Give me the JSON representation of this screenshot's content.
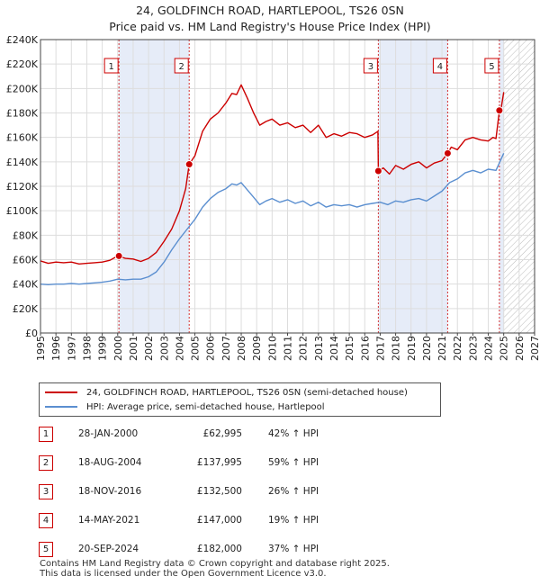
{
  "chart_data": {
    "type": "line",
    "title": "24, GOLDFINCH ROAD, HARTLEPOOL, TS26 0SN",
    "subtitle": "Price paid vs. HM Land Registry's House Price Index (HPI)",
    "xlim": [
      1995,
      2027
    ],
    "ylim": [
      0,
      240000
    ],
    "x_ticks": [
      1995,
      1996,
      1997,
      1998,
      1999,
      2000,
      2001,
      2002,
      2003,
      2004,
      2005,
      2006,
      2007,
      2008,
      2009,
      2010,
      2011,
      2012,
      2013,
      2014,
      2015,
      2016,
      2017,
      2018,
      2019,
      2020,
      2021,
      2022,
      2023,
      2024,
      2025,
      2026,
      2027
    ],
    "y_ticks": [
      0,
      20000,
      40000,
      60000,
      80000,
      100000,
      120000,
      140000,
      160000,
      180000,
      200000,
      220000,
      240000
    ],
    "y_tick_labels": [
      "£0",
      "£20K",
      "£40K",
      "£60K",
      "£80K",
      "£100K",
      "£120K",
      "£140K",
      "£160K",
      "£180K",
      "£200K",
      "£220K",
      "£240K"
    ],
    "future_start": 2025.0,
    "series": [
      {
        "name": "24, GOLDFINCH ROAD, HARTLEPOOL, TS26 0SN (semi-detached house)",
        "color": "#cc0000",
        "x": [
          1995.0,
          1995.5,
          1996.0,
          1996.5,
          1997.0,
          1997.5,
          1998.0,
          1998.5,
          1999.0,
          1999.5,
          2000.0,
          2000.5,
          2001.0,
          2001.5,
          2002.0,
          2002.5,
          2003.0,
          2003.5,
          2004.0,
          2004.4,
          2004.63,
          2005.0,
          2005.5,
          2006.0,
          2006.5,
          2007.0,
          2007.4,
          2007.7,
          2008.0,
          2008.4,
          2008.8,
          2009.2,
          2009.6,
          2010.0,
          2010.5,
          2011.0,
          2011.5,
          2012.0,
          2012.5,
          2013.0,
          2013.5,
          2014.0,
          2014.5,
          2015.0,
          2015.5,
          2016.0,
          2016.5,
          2016.85,
          2016.88,
          2017.2,
          2017.6,
          2018.0,
          2018.5,
          2019.0,
          2019.5,
          2020.0,
          2020.5,
          2021.0,
          2021.37,
          2021.6,
          2022.0,
          2022.5,
          2023.0,
          2023.5,
          2024.0,
          2024.3,
          2024.5,
          2024.72,
          2024.85,
          2025.0
        ],
        "y": [
          59000,
          57000,
          58000,
          57500,
          58000,
          56500,
          57000,
          57500,
          58000,
          59500,
          62995,
          61000,
          60500,
          58500,
          61000,
          66000,
          75000,
          85000,
          100000,
          118000,
          137995,
          145000,
          165000,
          175000,
          180000,
          188000,
          196000,
          195000,
          203000,
          192000,
          180000,
          170000,
          173000,
          175000,
          170000,
          172000,
          168000,
          170000,
          164000,
          170000,
          160000,
          163000,
          161000,
          164000,
          163000,
          160000,
          162000,
          165000,
          132500,
          135000,
          130000,
          137000,
          134000,
          138000,
          140000,
          135000,
          139000,
          141000,
          147000,
          152000,
          150000,
          158000,
          160000,
          158000,
          157000,
          160000,
          159000,
          182000,
          185000,
          197000
        ]
      },
      {
        "name": "HPI: Average price, semi-detached house, Hartlepool",
        "color": "#5b8fd0",
        "x": [
          1995.0,
          1995.5,
          1996.0,
          1996.5,
          1997.0,
          1997.5,
          1998.0,
          1998.5,
          1999.0,
          1999.5,
          2000.0,
          2000.5,
          2001.0,
          2001.5,
          2002.0,
          2002.5,
          2003.0,
          2003.5,
          2004.0,
          2004.5,
          2005.0,
          2005.5,
          2006.0,
          2006.5,
          2007.0,
          2007.4,
          2007.7,
          2008.0,
          2008.4,
          2008.8,
          2009.2,
          2009.6,
          2010.0,
          2010.5,
          2011.0,
          2011.5,
          2012.0,
          2012.5,
          2013.0,
          2013.5,
          2014.0,
          2014.5,
          2015.0,
          2015.5,
          2016.0,
          2016.5,
          2017.0,
          2017.5,
          2018.0,
          2018.5,
          2019.0,
          2019.5,
          2020.0,
          2020.5,
          2021.0,
          2021.5,
          2022.0,
          2022.5,
          2023.0,
          2023.5,
          2024.0,
          2024.5,
          2025.0
        ],
        "y": [
          40000,
          39500,
          40000,
          40000,
          40500,
          40000,
          40500,
          41000,
          41500,
          42500,
          44000,
          43500,
          44000,
          44000,
          46000,
          50000,
          58000,
          68000,
          77000,
          85000,
          93000,
          103000,
          110000,
          115000,
          118000,
          122000,
          121000,
          123000,
          117000,
          111000,
          105000,
          108000,
          110000,
          107000,
          109000,
          106000,
          108000,
          104000,
          107000,
          103000,
          105000,
          104000,
          105000,
          103000,
          105000,
          106000,
          107000,
          105000,
          108000,
          107000,
          109000,
          110000,
          108000,
          112000,
          116000,
          123000,
          126000,
          131000,
          133000,
          131000,
          134000,
          133000,
          147000
        ]
      }
    ],
    "sales": [
      {
        "label": "1",
        "date": "28-JAN-2000",
        "x": 2000.08,
        "price": 62995,
        "price_label": "£62,995",
        "hpi": "42% ↑ HPI"
      },
      {
        "label": "2",
        "date": "18-AUG-2004",
        "x": 2004.63,
        "price": 137995,
        "price_label": "£137,995",
        "hpi": "59% ↑ HPI"
      },
      {
        "label": "3",
        "date": "18-NOV-2016",
        "x": 2016.88,
        "price": 132500,
        "price_label": "£132,500",
        "hpi": "26% ↑ HPI"
      },
      {
        "label": "4",
        "date": "14-MAY-2021",
        "x": 2021.37,
        "price": 147000,
        "price_label": "£147,000",
        "hpi": "19% ↑ HPI"
      },
      {
        "label": "5",
        "date": "20-SEP-2024",
        "x": 2024.72,
        "price": 182000,
        "price_label": "£182,000",
        "hpi": "37% ↑ HPI"
      }
    ]
  },
  "legend": {
    "red_label": "24, GOLDFINCH ROAD, HARTLEPOOL, TS26 0SN (semi-detached house)",
    "blue_label": "HPI: Average price, semi-detached house, Hartlepool"
  },
  "footer": {
    "line1": "Contains HM Land Registry data © Crown copyright and database right 2025.",
    "line2": "This data is licensed under the Open Government Licence v3.0."
  }
}
